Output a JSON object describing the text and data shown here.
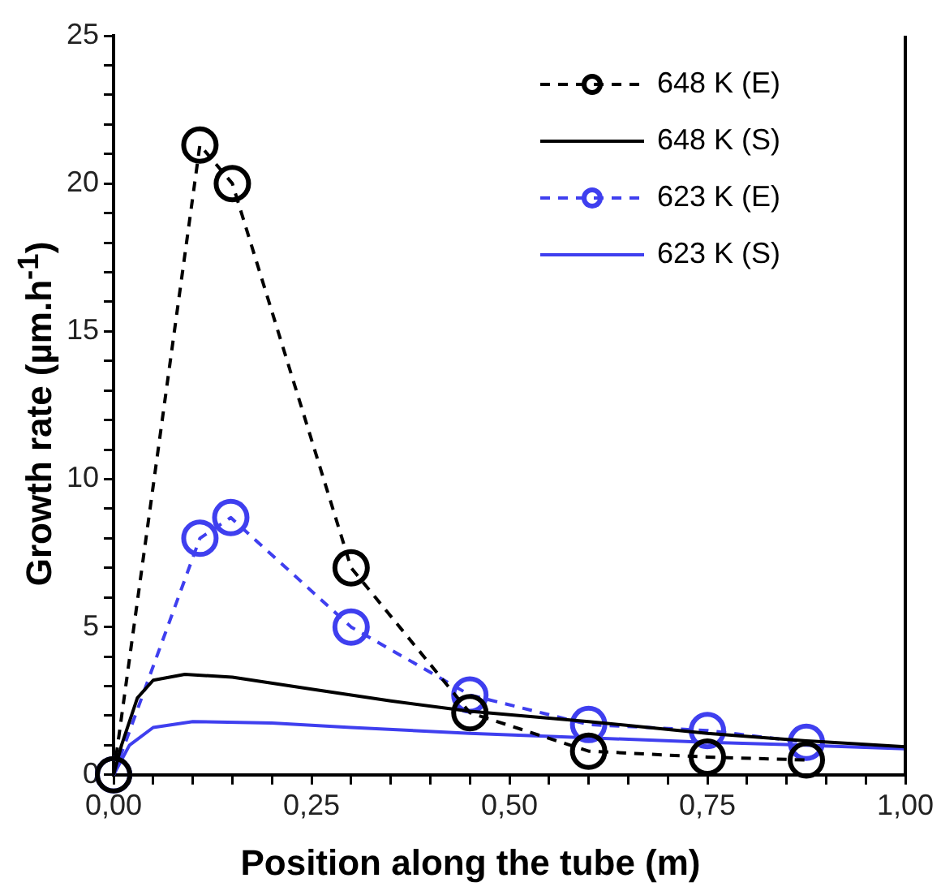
{
  "chart_data": {
    "type": "line",
    "xlabel": "Position along the tube (m)",
    "ylabel": "Growth rate (µm.h$^{-1}$)",
    "xlim": [
      0,
      1
    ],
    "ylim": [
      0,
      25
    ],
    "xticks": [
      {
        "value": 0,
        "label": "0,00"
      },
      {
        "value": 0.05,
        "label": null
      },
      {
        "value": 0.1,
        "label": null
      },
      {
        "value": 0.15,
        "label": null
      },
      {
        "value": 0.2,
        "label": null
      },
      {
        "value": 0.25,
        "label": "0,25"
      },
      {
        "value": 0.3,
        "label": null
      },
      {
        "value": 0.35,
        "label": null
      },
      {
        "value": 0.4,
        "label": null
      },
      {
        "value": 0.45,
        "label": null
      },
      {
        "value": 0.5,
        "label": "0,50"
      },
      {
        "value": 0.55,
        "label": null
      },
      {
        "value": 0.6,
        "label": null
      },
      {
        "value": 0.65,
        "label": null
      },
      {
        "value": 0.7,
        "label": null
      },
      {
        "value": 0.75,
        "label": "0,75"
      },
      {
        "value": 0.8,
        "label": null
      },
      {
        "value": 0.85,
        "label": null
      },
      {
        "value": 0.9,
        "label": null
      },
      {
        "value": 0.95,
        "label": null
      },
      {
        "value": 1,
        "label": "1,00"
      }
    ],
    "yticks": [
      0,
      {
        "value": 1,
        "label": null
      },
      {
        "value": 2,
        "label": null
      },
      {
        "value": 3,
        "label": null
      },
      {
        "value": 4,
        "label": null
      },
      5,
      {
        "value": 6,
        "label": null
      },
      {
        "value": 7,
        "label": null
      },
      {
        "value": 8,
        "label": null
      },
      {
        "value": 9,
        "label": null
      },
      10,
      {
        "value": 11,
        "label": null
      },
      {
        "value": 12,
        "label": null
      },
      {
        "value": 13,
        "label": null
      },
      {
        "value": 14,
        "label": null
      },
      15,
      {
        "value": 16,
        "label": null
      },
      {
        "value": 17,
        "label": null
      },
      {
        "value": 18,
        "label": null
      },
      {
        "value": 19,
        "label": null
      },
      20,
      {
        "value": 21,
        "label": null
      },
      {
        "value": 22,
        "label": null
      },
      {
        "value": 23,
        "label": null
      },
      {
        "value": 24,
        "label": null
      },
      25
    ],
    "grid": false,
    "legend": "top right",
    "series": [
      {
        "name": "648 K (E)",
        "color": "#000000",
        "marker": "circle",
        "line_style": "dashed",
        "x": [
          0,
          0.109,
          0.15,
          0.3,
          0.45,
          0.6,
          0.75,
          0.875
        ],
        "values": [
          0,
          21.3,
          20.0,
          7.0,
          2.1,
          0.8,
          0.6,
          0.5
        ]
      },
      {
        "name": "648 K (S)",
        "color": "#000000",
        "marker": "none",
        "line_style": "solid",
        "x": [
          0,
          0.01,
          0.03,
          0.05,
          0.09,
          0.15,
          0.25,
          0.35,
          0.45,
          0.6,
          0.75,
          0.875,
          1
        ],
        "values": [
          0,
          1.0,
          2.6,
          3.2,
          3.4,
          3.3,
          2.9,
          2.5,
          2.15,
          1.8,
          1.4,
          1.15,
          0.95
        ]
      },
      {
        "name": "623 K (E)",
        "color": "#3f3fef",
        "marker": "circle",
        "line_style": "dashed",
        "x": [
          0,
          0.109,
          0.148,
          0.3,
          0.45,
          0.6,
          0.75,
          0.875
        ],
        "values": [
          0,
          8.0,
          8.7,
          5.0,
          2.7,
          1.7,
          1.5,
          1.1
        ]
      },
      {
        "name": "623 K (S)",
        "color": "#3f3fef",
        "marker": "none",
        "line_style": "solid",
        "x": [
          0,
          0.02,
          0.05,
          0.1,
          0.2,
          0.3,
          0.45,
          0.6,
          0.75,
          0.875,
          1
        ],
        "values": [
          0,
          1.0,
          1.6,
          1.8,
          1.75,
          1.6,
          1.4,
          1.25,
          1.1,
          1.0,
          0.88
        ]
      }
    ]
  }
}
